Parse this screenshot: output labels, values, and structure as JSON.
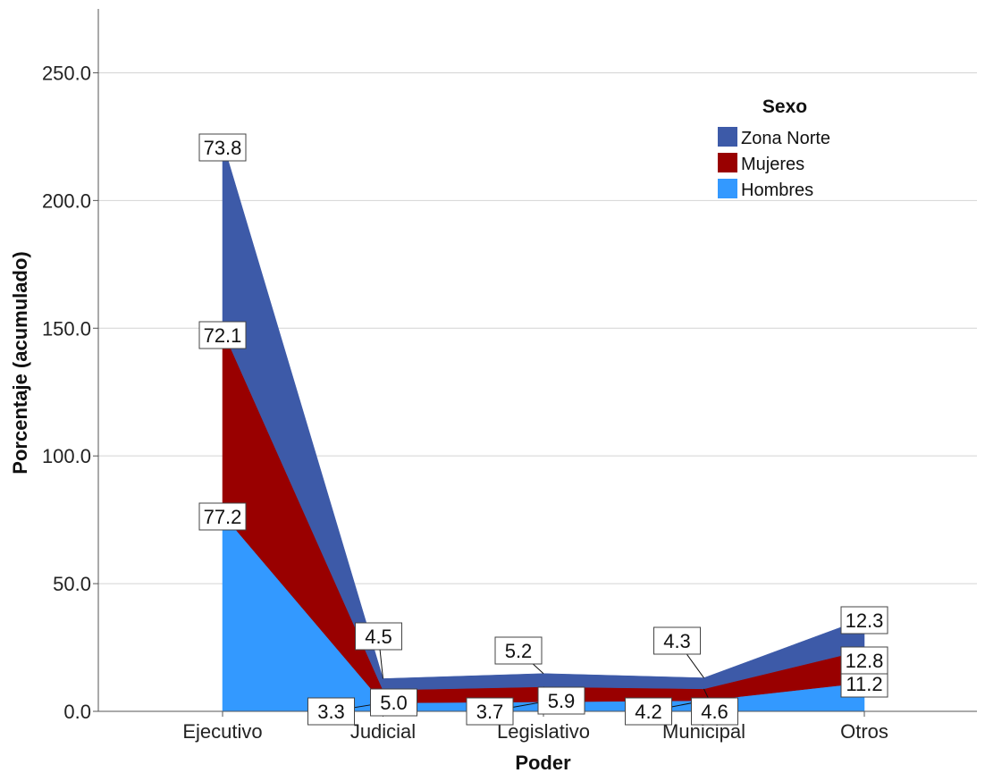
{
  "chart_data": {
    "type": "area",
    "stacked": true,
    "xlabel": "Poder",
    "ylabel": "Porcentaje (acumulado)",
    "categories": [
      "Ejecutivo",
      "Judicial",
      "Legislativo",
      "Municipal",
      "Otros"
    ],
    "ylim": [
      0,
      275
    ],
    "yticks": [
      0,
      50,
      100,
      150,
      200,
      250
    ],
    "ytick_labels": [
      "0.0",
      "50.0",
      "100.0",
      "150.0",
      "200.0",
      "250.0"
    ],
    "grid": "horizontal",
    "legend": {
      "title": "Sexo",
      "position": "top-right"
    },
    "series": [
      {
        "name": "Hombres",
        "color": "#3399ff",
        "values": [
          77.2,
          3.3,
          3.7,
          4.2,
          11.2
        ],
        "labels": [
          "77.2",
          "3.3",
          "3.7",
          "4.2",
          "11.2"
        ]
      },
      {
        "name": "Mujeres",
        "color": "#990000",
        "values": [
          72.1,
          5.0,
          5.9,
          4.6,
          12.8
        ],
        "labels": [
          "72.1",
          "5.0",
          "5.9",
          "4.6",
          "12.8"
        ]
      },
      {
        "name": "Zona Norte",
        "color": "#3d5aa8",
        "values": [
          73.8,
          4.5,
          5.2,
          4.3,
          12.3
        ],
        "labels": [
          "73.8",
          "4.5",
          "5.2",
          "4.3",
          "12.3"
        ]
      }
    ]
  }
}
